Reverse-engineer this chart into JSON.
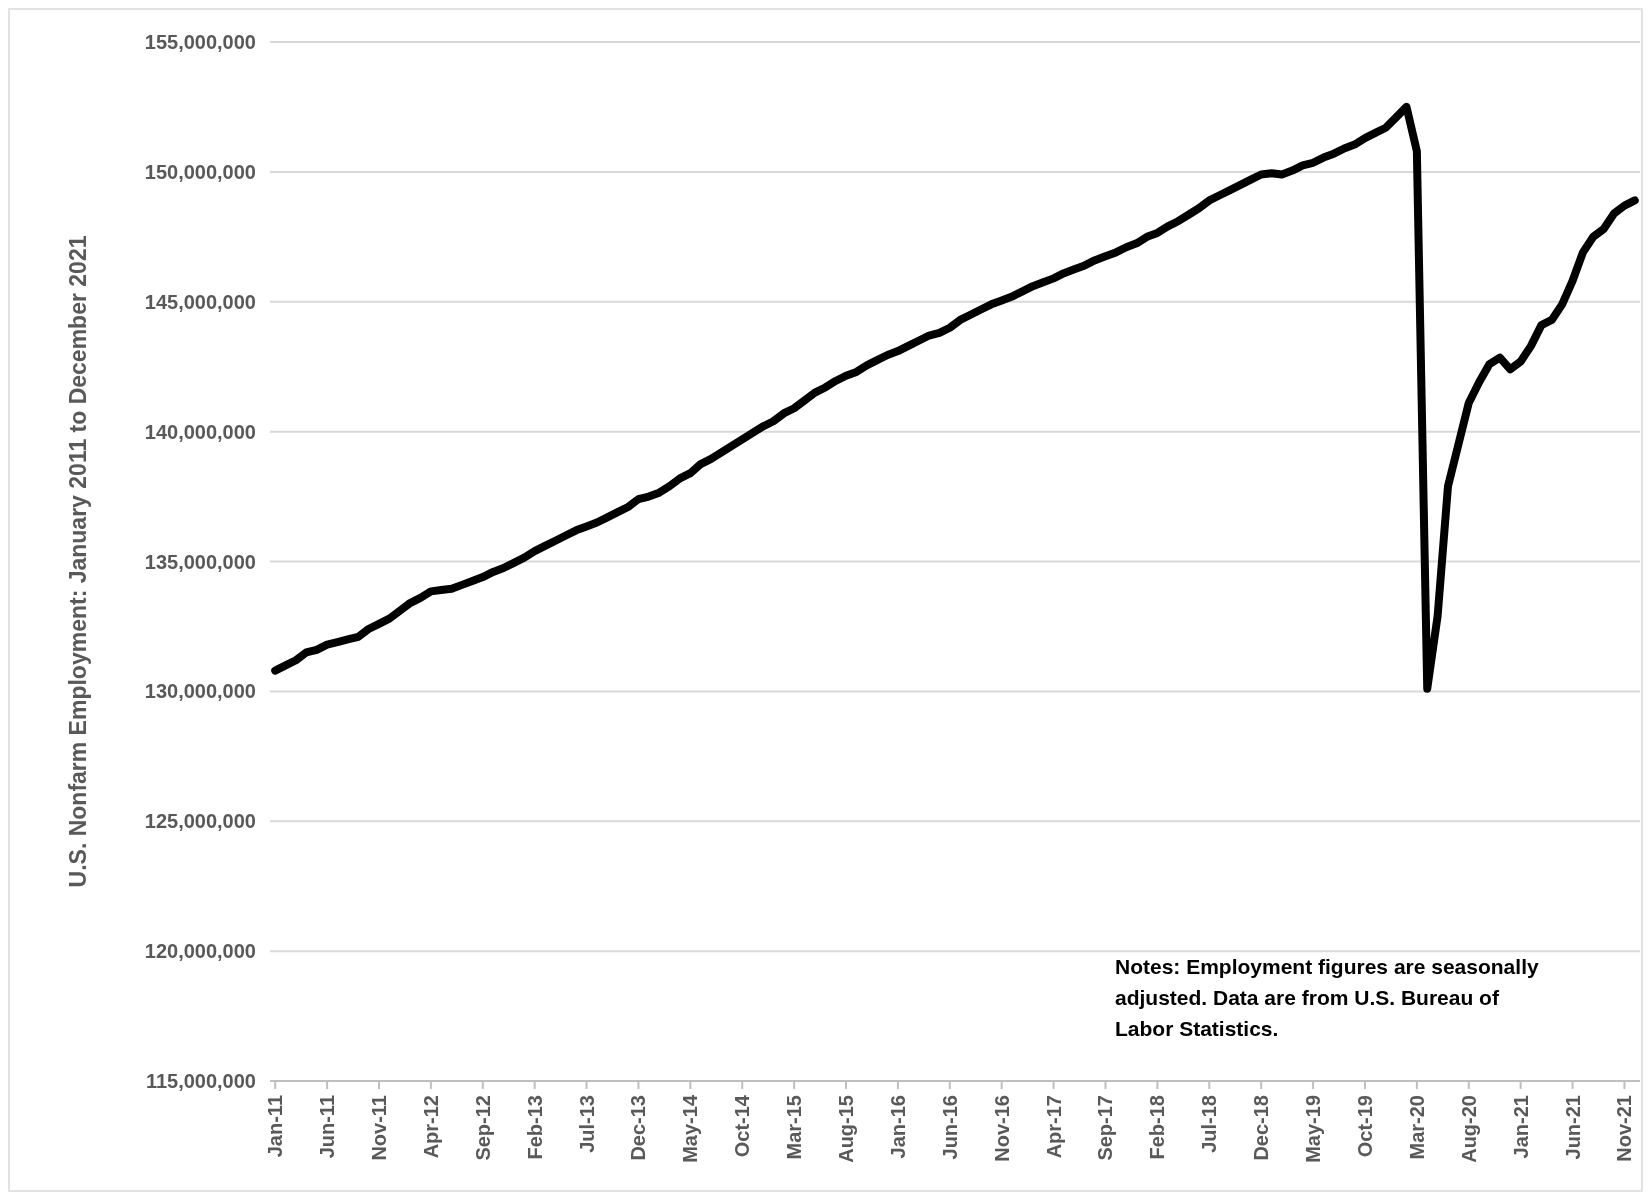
{
  "chart_data": {
    "type": "line",
    "ylabel": "U.S. Nonfarm Employment: January 2011 to December 2021",
    "categories": [
      "Jan-11",
      null,
      null,
      null,
      null,
      "Jun-11",
      null,
      null,
      null,
      null,
      "Nov-11",
      null,
      null,
      null,
      null,
      "Apr-12",
      null,
      null,
      null,
      null,
      "Sep-12",
      null,
      null,
      null,
      null,
      "Feb-13",
      null,
      null,
      null,
      null,
      "Jul-13",
      null,
      null,
      null,
      null,
      "Dec-13",
      null,
      null,
      null,
      null,
      "May-14",
      null,
      null,
      null,
      null,
      "Oct-14",
      null,
      null,
      null,
      null,
      "Mar-15",
      null,
      null,
      null,
      null,
      "Aug-15",
      null,
      null,
      null,
      null,
      "Jan-16",
      null,
      null,
      null,
      null,
      "Jun-16",
      null,
      null,
      null,
      null,
      "Nov-16",
      null,
      null,
      null,
      null,
      "Apr-17",
      null,
      null,
      null,
      null,
      "Sep-17",
      null,
      null,
      null,
      null,
      "Feb-18",
      null,
      null,
      null,
      null,
      "Jul-18",
      null,
      null,
      null,
      null,
      "Dec-18",
      null,
      null,
      null,
      null,
      "May-19",
      null,
      null,
      null,
      null,
      "Oct-19",
      null,
      null,
      null,
      null,
      "Mar-20",
      null,
      null,
      null,
      null,
      "Aug-20",
      null,
      null,
      null,
      null,
      "Jan-21",
      null,
      null,
      null,
      null,
      "Jun-21",
      null,
      null,
      null,
      null,
      "Nov-21",
      null
    ],
    "series": [
      {
        "color": "#000000",
        "values": [
          130800000,
          131000000,
          131200000,
          131500000,
          131600000,
          131800000,
          131900000,
          132000000,
          132100000,
          132400000,
          132600000,
          132800000,
          133100000,
          133400000,
          133600000,
          133850000,
          133900000,
          133950000,
          134100000,
          134250000,
          134400000,
          134600000,
          134750000,
          134950000,
          135150000,
          135400000,
          135600000,
          135800000,
          136000000,
          136200000,
          136350000,
          136500000,
          136700000,
          136900000,
          137100000,
          137400000,
          137500000,
          137650000,
          137900000,
          138200000,
          138400000,
          138750000,
          138950000,
          139200000,
          139450000,
          139700000,
          139950000,
          140200000,
          140400000,
          140700000,
          140900000,
          141200000,
          141500000,
          141700000,
          141950000,
          142150000,
          142300000,
          142550000,
          142750000,
          142950000,
          143100000,
          143300000,
          143500000,
          143700000,
          143800000,
          144000000,
          144300000,
          144500000,
          144700000,
          144900000,
          145050000,
          145200000,
          145400000,
          145600000,
          145750000,
          145900000,
          146100000,
          146250000,
          146400000,
          146600000,
          146750000,
          146900000,
          147100000,
          147250000,
          147500000,
          147650000,
          147900000,
          148100000,
          148350000,
          148600000,
          148900000,
          149100000,
          149300000,
          149500000,
          149700000,
          149900000,
          149950000,
          149900000,
          150050000,
          150250000,
          150350000,
          150550000,
          150700000,
          150900000,
          151050000,
          151300000,
          151500000,
          151700000,
          152100000,
          152500000,
          150800000,
          130100000,
          132900000,
          137900000,
          139500000,
          141100000,
          141900000,
          142600000,
          142850000,
          142400000,
          142700000,
          143300000,
          144100000,
          144300000,
          144900000,
          145800000,
          146900000,
          147500000,
          147800000,
          148400000,
          148700000,
          148900000
        ]
      }
    ],
    "ylim": [
      115000000,
      155000000
    ],
    "yticks": [
      {
        "value": 115000000,
        "label": "115,000,000"
      },
      {
        "value": 120000000,
        "label": "120,000,000"
      },
      {
        "value": 125000000,
        "label": "125,000,000"
      },
      {
        "value": 130000000,
        "label": "130,000,000"
      },
      {
        "value": 135000000,
        "label": "135,000,000"
      },
      {
        "value": 140000000,
        "label": "140,000,000"
      },
      {
        "value": 145000000,
        "label": "145,000,000"
      },
      {
        "value": 150000000,
        "label": "150,000,000"
      },
      {
        "value": 155000000,
        "label": "155,000,000"
      }
    ],
    "grid": "y",
    "annotations": [
      "Notes: Employment figures are seasonally adjusted. Data are from U.S. Bureau of Labor Statistics."
    ]
  }
}
